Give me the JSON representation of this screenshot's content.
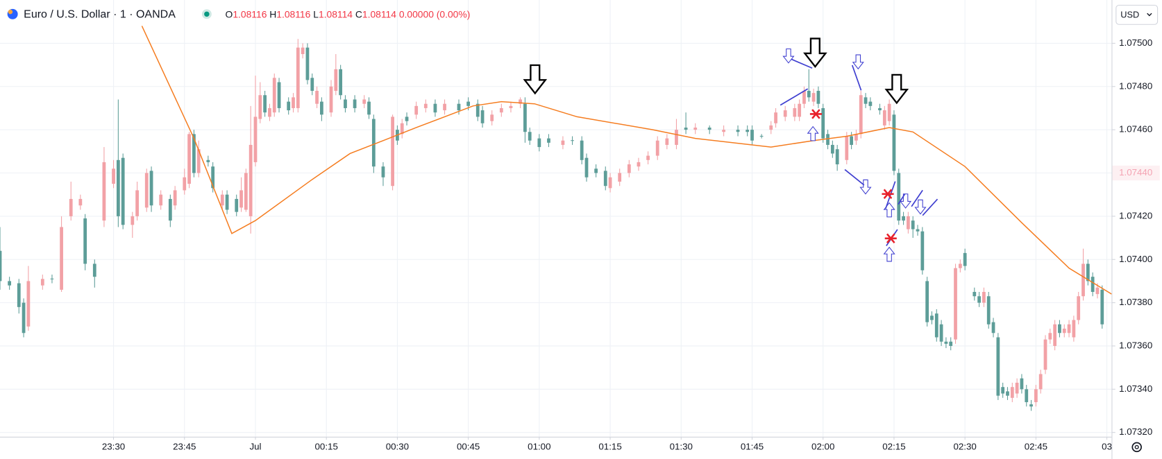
{
  "header": {
    "symbol": "Euro / U.S. Dollar · 1 · OANDA",
    "ohlc": [
      {
        "label": "O",
        "value": "1.08116"
      },
      {
        "label": "H",
        "value": "1.08116"
      },
      {
        "label": "L",
        "value": "1.08114"
      },
      {
        "label": "C",
        "value": "1.08114"
      }
    ],
    "change": "0.00000 (0.00%)"
  },
  "currency": "USD",
  "chart_data": {
    "type": "candlestick",
    "up_color": "#f2a1a6",
    "down_color": "#5d9d98",
    "grid": true,
    "xlim": [
      -24,
      211
    ],
    "ylim": [
      1.07318,
      1.0752
    ],
    "xticks": [
      {
        "value": 0,
        "label": "23:30"
      },
      {
        "value": 15,
        "label": "23:45"
      },
      {
        "value": 30,
        "label": "Jul"
      },
      {
        "value": 45,
        "label": "00:15"
      },
      {
        "value": 60,
        "label": "00:30"
      },
      {
        "value": 75,
        "label": "00:45"
      },
      {
        "value": 90,
        "label": "01:00"
      },
      {
        "value": 105,
        "label": "01:15"
      },
      {
        "value": 120,
        "label": "01:30"
      },
      {
        "value": 135,
        "label": "01:45"
      },
      {
        "value": 150,
        "label": "02:00"
      },
      {
        "value": 165,
        "label": "02:15"
      },
      {
        "value": 180,
        "label": "02:30"
      },
      {
        "value": 195,
        "label": "02:45"
      },
      {
        "value": 210,
        "label": "03"
      }
    ],
    "yticks": [
      {
        "value": 1.0732,
        "label": "1.07320"
      },
      {
        "value": 1.0734,
        "label": "1.07340"
      },
      {
        "value": 1.0736,
        "label": "1.07360"
      },
      {
        "value": 1.0738,
        "label": "1.07380"
      },
      {
        "value": 1.074,
        "label": "1.07400"
      },
      {
        "value": 1.0742,
        "label": "1.07420"
      },
      {
        "value": 1.0744,
        "label": "1.07440"
      },
      {
        "value": 1.0746,
        "label": "1.07460"
      },
      {
        "value": 1.0748,
        "label": "1.07480"
      },
      {
        "value": 1.075,
        "label": "1.07500"
      }
    ],
    "price_label": {
      "value": 1.0744,
      "label": "1.07440"
    },
    "candles": {
      "x": [
        -24,
        -22,
        -20,
        -19,
        -18,
        -15,
        -13,
        -11,
        -9,
        -7,
        -6,
        -4,
        -2,
        0,
        1,
        2,
        4,
        5,
        7,
        8,
        10,
        12,
        13,
        15,
        16,
        17,
        18,
        20,
        21,
        23,
        24,
        26,
        27,
        28,
        29,
        30,
        31,
        32,
        33,
        34,
        35,
        37,
        38,
        39,
        40,
        41,
        42,
        43,
        44,
        46,
        47,
        48,
        49,
        51,
        53,
        54,
        55,
        57,
        59,
        60,
        61,
        62,
        64,
        66,
        68,
        70,
        73,
        75,
        77,
        78,
        80,
        82,
        84,
        86,
        87,
        88,
        90,
        92,
        95,
        97,
        99,
        100,
        102,
        104,
        105,
        107,
        109,
        111,
        113,
        115,
        117,
        119,
        121,
        123,
        126,
        129,
        132,
        134,
        135,
        137,
        139,
        140,
        142,
        144,
        145,
        146,
        147,
        148,
        149,
        150,
        151,
        152,
        153,
        155,
        156,
        157,
        158,
        159,
        160,
        162,
        163,
        164,
        165,
        166,
        167,
        168,
        169,
        170,
        171,
        172,
        173,
        174,
        175,
        176,
        177,
        178,
        179,
        180,
        182,
        183,
        184,
        185,
        186,
        187,
        188,
        189,
        190,
        191,
        192,
        193,
        194,
        195,
        196,
        197,
        198,
        199,
        200,
        201,
        202,
        203,
        204,
        205,
        206,
        207,
        208,
        209
      ],
      "open": [
        1.07404,
        1.0739,
        1.07389,
        1.0738,
        1.07369,
        1.07388,
        1.07391,
        1.07386,
        1.0742,
        1.07425,
        1.07419,
        1.07398,
        1.07418,
        1.07435,
        1.07446,
        1.07447,
        1.07416,
        1.0742,
        1.07424,
        1.07441,
        1.07425,
        1.07428,
        1.07425,
        1.07432,
        1.07435,
        1.07458,
        1.0744,
        1.07446,
        1.07443,
        1.07425,
        1.0743,
        1.07428,
        1.07424,
        1.07423,
        1.0742,
        1.07445,
        1.07465,
        1.07476,
        1.07466,
        1.07468,
        1.07482,
        1.07473,
        1.0747,
        1.0747,
        1.07495,
        1.07498,
        1.07484,
        1.07472,
        1.07473,
        1.07468,
        1.07478,
        1.07488,
        1.07474,
        1.07474,
        1.07472,
        1.07473,
        1.07465,
        1.07443,
        1.07434,
        1.0746,
        1.07458,
        1.07466,
        1.07467,
        1.0747,
        1.07472,
        1.07469,
        1.07472,
        1.07473,
        1.07472,
        1.07469,
        1.07464,
        1.07468,
        1.0747,
        1.07472,
        1.07472,
        1.07459,
        1.07456,
        1.07456,
        1.07453,
        1.07455,
        1.07455,
        1.07447,
        1.07442,
        1.07441,
        1.07433,
        1.07436,
        1.0744,
        1.07443,
        1.07446,
        1.07448,
        1.07453,
        1.07453,
        1.07461,
        1.0746,
        1.07461,
        1.07459,
        1.0746,
        1.0746,
        1.0746,
        1.07457,
        1.0746,
        1.07463,
        1.07466,
        1.07466,
        1.07466,
        1.07472,
        1.07478,
        1.07473,
        1.07478,
        1.0747,
        1.07458,
        1.07453,
        1.07451,
        1.07446,
        1.07457,
        1.07455,
        1.07458,
        1.07475,
        1.07473,
        1.0747,
        1.07462,
        1.07464,
        1.07467,
        1.0744,
        1.0742,
        1.07414,
        1.07418,
        1.07414,
        1.07413,
        1.0739,
        1.07374,
        1.07375,
        1.0737,
        1.07362,
        1.07362,
        1.07363,
        1.07396,
        1.07403,
        1.07385,
        1.07383,
        1.0738,
        1.07383,
        1.07371,
        1.07364,
        1.07341,
        1.07339,
        1.07336,
        1.07338,
        1.07345,
        1.0734,
        1.07333,
        1.07334,
        1.0734,
        1.07349,
        1.07363,
        1.0736,
        1.0737,
        1.07366,
        1.07366,
        1.07364,
        1.07372,
        1.07383,
        1.07398,
        1.07392,
        1.07384,
        1.07386
      ],
      "high": [
        1.07415,
        1.07392,
        1.07391,
        1.07382,
        1.07397,
        1.07393,
        1.07393,
        1.0742,
        1.07436,
        1.0743,
        1.07421,
        1.074,
        1.07452,
        1.07446,
        1.07474,
        1.07449,
        1.07422,
        1.07436,
        1.07442,
        1.07443,
        1.07432,
        1.0743,
        1.07434,
        1.07442,
        1.07459,
        1.0746,
        1.07455,
        1.07448,
        1.07445,
        1.07432,
        1.07432,
        1.0743,
        1.07438,
        1.07442,
        1.07471,
        1.07485,
        1.07482,
        1.07478,
        1.07472,
        1.07486,
        1.07484,
        1.07475,
        1.07477,
        1.07502,
        1.075,
        1.075,
        1.07486,
        1.0748,
        1.07475,
        1.07483,
        1.07495,
        1.0749,
        1.07476,
        1.07476,
        1.07476,
        1.07475,
        1.07467,
        1.07445,
        1.07467,
        1.07462,
        1.07465,
        1.07468,
        1.07473,
        1.07474,
        1.07474,
        1.07474,
        1.07474,
        1.07475,
        1.07474,
        1.07471,
        1.07469,
        1.07472,
        1.07473,
        1.07475,
        1.07475,
        1.07461,
        1.07458,
        1.07458,
        1.07457,
        1.07457,
        1.07457,
        1.07449,
        1.07444,
        1.07443,
        1.0744,
        1.07442,
        1.07446,
        1.07447,
        1.0745,
        1.07457,
        1.07458,
        1.07465,
        1.07468,
        1.07463,
        1.07462,
        1.07462,
        1.07462,
        1.07462,
        1.07462,
        1.07458,
        1.07464,
        1.0747,
        1.07471,
        1.07472,
        1.07474,
        1.0748,
        1.07488,
        1.07479,
        1.0748,
        1.07472,
        1.0746,
        1.07455,
        1.07453,
        1.07459,
        1.07459,
        1.0746,
        1.07478,
        1.07477,
        1.07475,
        1.07472,
        1.07471,
        1.07474,
        1.07469,
        1.07442,
        1.07422,
        1.07422,
        1.0742,
        1.07416,
        1.07415,
        1.07392,
        1.07376,
        1.07377,
        1.07372,
        1.07364,
        1.07364,
        1.07398,
        1.074,
        1.07405,
        1.07387,
        1.07385,
        1.07387,
        1.07385,
        1.07373,
        1.07366,
        1.07343,
        1.07341,
        1.07343,
        1.07345,
        1.07347,
        1.07342,
        1.07335,
        1.07342,
        1.07349,
        1.07365,
        1.07368,
        1.07372,
        1.07372,
        1.0737,
        1.07372,
        1.07374,
        1.07385,
        1.07405,
        1.074,
        1.07394,
        1.07389,
        1.07388
      ],
      "low": [
        1.07386,
        1.07386,
        1.07375,
        1.07364,
        1.07367,
        1.07386,
        1.07389,
        1.07385,
        1.07418,
        1.07423,
        1.07395,
        1.07387,
        1.07415,
        1.07433,
        1.07415,
        1.07414,
        1.0741,
        1.07418,
        1.07422,
        1.07422,
        1.07423,
        1.07415,
        1.07423,
        1.0743,
        1.07433,
        1.07438,
        1.07438,
        1.07443,
        1.07431,
        1.07423,
        1.07421,
        1.0742,
        1.07422,
        1.07422,
        1.07412,
        1.07443,
        1.07463,
        1.07466,
        1.07464,
        1.07466,
        1.07468,
        1.07467,
        1.07468,
        1.07468,
        1.07493,
        1.07481,
        1.07476,
        1.0747,
        1.07464,
        1.07466,
        1.07476,
        1.07474,
        1.07468,
        1.07468,
        1.0747,
        1.07465,
        1.0744,
        1.07434,
        1.07432,
        1.07453,
        1.07456,
        1.07462,
        1.07465,
        1.07468,
        1.07466,
        1.07467,
        1.07467,
        1.07469,
        1.07464,
        1.07461,
        1.07462,
        1.07466,
        1.07468,
        1.0747,
        1.07454,
        1.07453,
        1.0745,
        1.07452,
        1.07451,
        1.07453,
        1.07444,
        1.07436,
        1.07438,
        1.07432,
        1.07431,
        1.07434,
        1.07438,
        1.07441,
        1.07444,
        1.07446,
        1.07451,
        1.07451,
        1.07458,
        1.07458,
        1.07458,
        1.07457,
        1.07457,
        1.07457,
        1.07453,
        1.07456,
        1.07458,
        1.07461,
        1.07464,
        1.07464,
        1.07464,
        1.0747,
        1.07473,
        1.07471,
        1.0747,
        1.07454,
        1.07451,
        1.07447,
        1.07441,
        1.07444,
        1.07451,
        1.07453,
        1.07456,
        1.0747,
        1.07469,
        1.07467,
        1.0746,
        1.07462,
        1.07439,
        1.07416,
        1.07416,
        1.07412,
        1.0741,
        1.07411,
        1.07393,
        1.07369,
        1.0737,
        1.07362,
        1.0736,
        1.07359,
        1.07358,
        1.07361,
        1.07394,
        1.07395,
        1.07381,
        1.07378,
        1.07378,
        1.07368,
        1.07364,
        1.07335,
        1.07336,
        1.07335,
        1.07334,
        1.07336,
        1.07338,
        1.07332,
        1.0733,
        1.07332,
        1.07338,
        1.07347,
        1.07361,
        1.07358,
        1.07364,
        1.07364,
        1.07364,
        1.07362,
        1.0737,
        1.07381,
        1.07388,
        1.07383,
        1.07382,
        1.07368
      ],
      "close": [
        1.0739,
        1.07388,
        1.07378,
        1.07366,
        1.0739,
        1.07391,
        1.07391,
        1.07415,
        1.07428,
        1.07428,
        1.07398,
        1.07392,
        1.07445,
        1.07442,
        1.0742,
        1.07416,
        1.0742,
        1.07432,
        1.0744,
        1.07425,
        1.0743,
        1.07418,
        1.07432,
        1.07438,
        1.07458,
        1.0744,
        1.07451,
        1.07445,
        1.07433,
        1.0743,
        1.07423,
        1.07422,
        1.07432,
        1.0744,
        1.07453,
        1.07466,
        1.07476,
        1.07468,
        1.0747,
        1.07484,
        1.0747,
        1.07469,
        1.07475,
        1.07498,
        1.07498,
        1.07483,
        1.07478,
        1.07478,
        1.07467,
        1.0748,
        1.07488,
        1.07476,
        1.0747,
        1.0747,
        1.07474,
        1.07467,
        1.07443,
        1.07438,
        1.07466,
        1.07455,
        1.07463,
        1.07464,
        1.07471,
        1.07472,
        1.07468,
        1.07472,
        1.07469,
        1.07471,
        1.07466,
        1.07463,
        1.07467,
        1.0747,
        1.07471,
        1.07474,
        1.07459,
        1.07455,
        1.07452,
        1.07454,
        1.07455,
        1.07455,
        1.07446,
        1.07438,
        1.0744,
        1.07434,
        1.07438,
        1.0744,
        1.07444,
        1.07445,
        1.07448,
        1.07455,
        1.07456,
        1.0746,
        1.0746,
        1.07461,
        1.0746,
        1.0746,
        1.07459,
        1.07459,
        1.07455,
        1.07457,
        1.07462,
        1.07468,
        1.07469,
        1.0747,
        1.07472,
        1.07478,
        1.07475,
        1.07477,
        1.07472,
        1.07456,
        1.07453,
        1.07449,
        1.07444,
        1.07457,
        1.07453,
        1.07458,
        1.07476,
        1.07472,
        1.07471,
        1.07469,
        1.07469,
        1.07472,
        1.07441,
        1.07418,
        1.07418,
        1.0742,
        1.07414,
        1.07413,
        1.07395,
        1.07371,
        1.07372,
        1.07364,
        1.07362,
        1.07361,
        1.0736,
        1.07396,
        1.07398,
        1.07397,
        1.07383,
        1.0738,
        1.07385,
        1.0737,
        1.07366,
        1.07337,
        1.07338,
        1.07337,
        1.07341,
        1.07343,
        1.0734,
        1.07334,
        1.07332,
        1.0734,
        1.07347,
        1.07363,
        1.07366,
        1.0737,
        1.07366,
        1.07368,
        1.0737,
        1.07372,
        1.07383,
        1.07398,
        1.0739,
        1.07385,
        1.07387,
        1.0737
      ]
    },
    "overlay": {
      "color": "#f57c1f",
      "x": [
        6,
        17,
        25,
        30,
        42,
        50,
        57,
        64,
        76,
        82,
        89,
        98,
        114,
        123,
        139,
        148,
        155,
        164,
        169,
        180,
        192,
        202,
        211
      ],
      "values": [
        1.07508,
        1.07456,
        1.07412,
        1.07418,
        1.07437,
        1.07449,
        1.07455,
        1.07461,
        1.07471,
        1.07473,
        1.07472,
        1.07466,
        1.0746,
        1.07456,
        1.07452,
        1.07455,
        1.07457,
        1.07461,
        1.07459,
        1.07443,
        1.07417,
        1.07396,
        1.07384
      ]
    }
  }
}
